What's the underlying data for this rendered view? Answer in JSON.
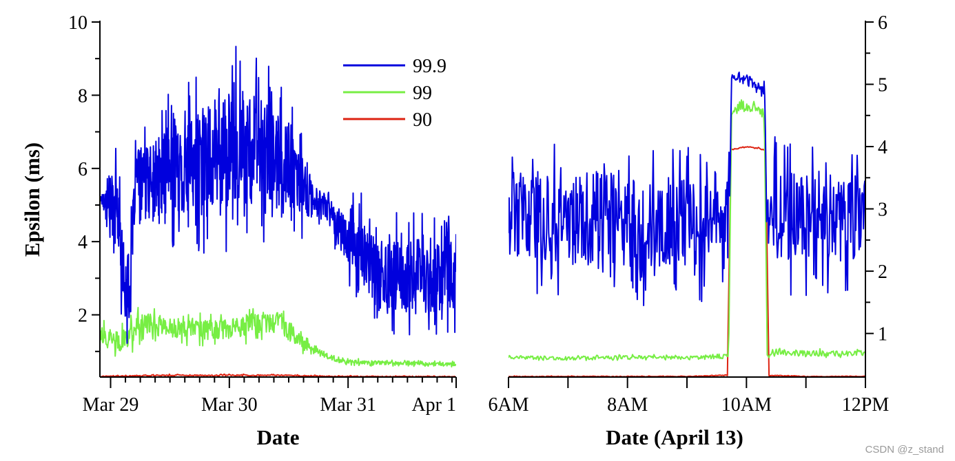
{
  "watermark": "CSDN @z_stand",
  "colors": {
    "s999": "#0000dd",
    "s99": "#77ee44",
    "s90": "#dd2211"
  },
  "chart_data": [
    {
      "type": "line",
      "title": "",
      "xlabel": "Date",
      "ylabel": "Epsilon (ms)",
      "xlim": [
        0,
        3
      ],
      "ylim": [
        0.3,
        10
      ],
      "x_ticks": [
        {
          "value": 0.09,
          "label": "Mar 29"
        },
        {
          "value": 1.09,
          "label": "Mar 30"
        },
        {
          "value": 2.09,
          "label": "Mar 31"
        },
        {
          "value": 3.0,
          "label": "Apr 1"
        }
      ],
      "y_ticks": [
        {
          "value": 2,
          "label": "2"
        },
        {
          "value": 4,
          "label": "4"
        },
        {
          "value": 6,
          "label": "6"
        },
        {
          "value": 8,
          "label": "8"
        },
        {
          "value": 10,
          "label": "10"
        }
      ],
      "legend": {
        "position": "top-center",
        "entries": [
          "99.9",
          "99",
          "90"
        ]
      },
      "series": [
        {
          "name": "99.9",
          "color_key": "s999",
          "points": [
            [
              0.0,
              5.2
            ],
            [
              0.1,
              5.0
            ],
            [
              0.15,
              4.8
            ],
            [
              0.2,
              3.0
            ],
            [
              0.25,
              2.6
            ],
            [
              0.3,
              5.8
            ],
            [
              0.35,
              5.7
            ],
            [
              0.4,
              5.6
            ],
            [
              0.5,
              5.8
            ],
            [
              0.6,
              6.0
            ],
            [
              0.7,
              6.0
            ],
            [
              0.8,
              6.2
            ],
            [
              0.9,
              6.3
            ],
            [
              1.0,
              6.5
            ],
            [
              1.1,
              6.5
            ],
            [
              1.2,
              6.6
            ],
            [
              1.3,
              6.5
            ],
            [
              1.4,
              6.4
            ],
            [
              1.5,
              6.2
            ],
            [
              1.6,
              6.0
            ],
            [
              1.7,
              5.5
            ],
            [
              1.8,
              5.1
            ],
            [
              1.9,
              5.0
            ],
            [
              2.0,
              4.5
            ],
            [
              2.1,
              4.0
            ],
            [
              2.2,
              3.8
            ],
            [
              2.3,
              3.2
            ],
            [
              2.4,
              3.0
            ],
            [
              2.5,
              3.1
            ],
            [
              2.6,
              3.0
            ],
            [
              2.7,
              3.2
            ],
            [
              2.8,
              3.0
            ],
            [
              2.9,
              3.1
            ],
            [
              3.0,
              3.0
            ]
          ],
          "noise": [
            0.0,
            1.5,
            1.8,
            1.8,
            1.6,
            1.2,
            1.5,
            1.8,
            2.0,
            2.2,
            2.3,
            2.5,
            2.7,
            2.8,
            2.8,
            2.8,
            2.7,
            2.5,
            2.3,
            2.0,
            1.5,
            0.8,
            0.6,
            0.9,
            1.3,
            1.6,
            1.6,
            1.7,
            1.7,
            1.7,
            1.7,
            1.7,
            1.7,
            1.6
          ]
        },
        {
          "name": "99",
          "color_key": "s99",
          "points": [
            [
              0.0,
              1.4
            ],
            [
              0.15,
              1.25
            ],
            [
              0.3,
              1.5
            ],
            [
              0.35,
              1.75
            ],
            [
              0.5,
              1.7
            ],
            [
              0.7,
              1.6
            ],
            [
              0.9,
              1.6
            ],
            [
              1.1,
              1.6
            ],
            [
              1.3,
              1.75
            ],
            [
              1.5,
              1.8
            ],
            [
              1.6,
              1.5
            ],
            [
              1.7,
              1.25
            ],
            [
              1.8,
              1.05
            ],
            [
              1.9,
              0.9
            ],
            [
              2.0,
              0.75
            ],
            [
              2.2,
              0.7
            ],
            [
              2.5,
              0.68
            ],
            [
              3.0,
              0.65
            ]
          ],
          "noise": [
            0.5,
            0.5,
            0.6,
            0.6,
            0.5,
            0.5,
            0.5,
            0.5,
            0.5,
            0.5,
            0.4,
            0.3,
            0.2,
            0.15,
            0.1,
            0.1,
            0.08,
            0.08
          ]
        },
        {
          "name": "90",
          "color_key": "s90",
          "points": [
            [
              0.0,
              0.32
            ],
            [
              0.5,
              0.35
            ],
            [
              1.0,
              0.35
            ],
            [
              1.5,
              0.35
            ],
            [
              2.0,
              0.32
            ],
            [
              3.0,
              0.31
            ]
          ],
          "noise": [
            0.02,
            0.03,
            0.03,
            0.03,
            0.02,
            0.02
          ]
        }
      ]
    },
    {
      "type": "line",
      "title": "",
      "xlabel": "Date (April 13)",
      "ylabel": "",
      "xlim": [
        0,
        6
      ],
      "ylim": [
        0.3,
        6
      ],
      "x_ticks": [
        {
          "value": 0.0,
          "label": "6AM"
        },
        {
          "value": 2.0,
          "label": "8AM"
        },
        {
          "value": 4.0,
          "label": "10AM"
        },
        {
          "value": 6.0,
          "label": "12PM"
        }
      ],
      "y_ticks": [
        {
          "value": 1,
          "label": "1"
        },
        {
          "value": 2,
          "label": "2"
        },
        {
          "value": 3,
          "label": "3"
        },
        {
          "value": 4,
          "label": "4"
        },
        {
          "value": 5,
          "label": "5"
        },
        {
          "value": 6,
          "label": "6"
        }
      ],
      "series": [
        {
          "name": "99.9",
          "color_key": "s999",
          "points": [
            [
              0.0,
              2.9
            ],
            [
              0.5,
              2.9
            ],
            [
              1.0,
              2.8
            ],
            [
              1.5,
              2.9
            ],
            [
              2.0,
              2.8
            ],
            [
              2.5,
              2.7
            ],
            [
              3.0,
              2.8
            ],
            [
              3.5,
              2.8
            ],
            [
              3.7,
              2.6
            ],
            [
              3.75,
              5.1
            ],
            [
              4.0,
              5.1
            ],
            [
              4.3,
              4.9
            ],
            [
              4.35,
              2.9
            ],
            [
              4.5,
              2.9
            ],
            [
              5.0,
              2.9
            ],
            [
              5.5,
              2.9
            ],
            [
              6.0,
              2.9
            ]
          ],
          "noise": [
            1.2,
            1.3,
            1.3,
            1.3,
            1.3,
            1.3,
            1.3,
            1.3,
            1.2,
            0.12,
            0.12,
            0.15,
            1.2,
            1.3,
            1.3,
            1.3,
            1.3
          ]
        },
        {
          "name": "99",
          "color_key": "s99",
          "points": [
            [
              0.0,
              0.62
            ],
            [
              1.0,
              0.6
            ],
            [
              2.0,
              0.62
            ],
            [
              3.0,
              0.62
            ],
            [
              3.7,
              0.62
            ],
            [
              3.75,
              4.6
            ],
            [
              4.0,
              4.65
            ],
            [
              4.3,
              4.55
            ],
            [
              4.35,
              0.68
            ],
            [
              5.0,
              0.68
            ],
            [
              6.0,
              0.68
            ]
          ],
          "noise": [
            0.05,
            0.05,
            0.05,
            0.05,
            0.05,
            0.1,
            0.15,
            0.1,
            0.08,
            0.08,
            0.08
          ]
        },
        {
          "name": "90",
          "color_key": "s90",
          "points": [
            [
              0.0,
              0.31
            ],
            [
              1.0,
              0.31
            ],
            [
              2.0,
              0.31
            ],
            [
              3.0,
              0.31
            ],
            [
              3.68,
              0.33
            ],
            [
              3.74,
              3.95
            ],
            [
              4.0,
              4.0
            ],
            [
              4.32,
              3.95
            ],
            [
              4.38,
              0.33
            ],
            [
              5.0,
              0.31
            ],
            [
              6.0,
              0.31
            ]
          ],
          "noise": [
            0.01,
            0.01,
            0.01,
            0.01,
            0.01,
            0.02,
            0.02,
            0.02,
            0.01,
            0.01,
            0.01
          ]
        }
      ]
    }
  ]
}
